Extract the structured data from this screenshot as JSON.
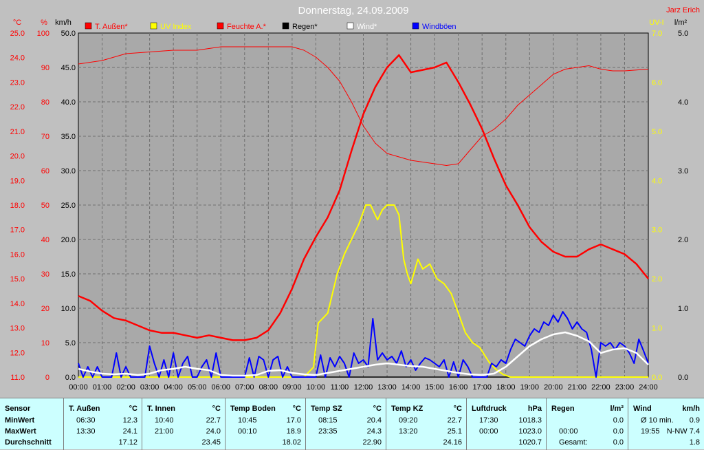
{
  "header": {
    "title": "Donnerstag, 24.09.2009",
    "author": "Jarz Erich"
  },
  "axes": {
    "temp_unit": "°C",
    "hum_unit": "%",
    "wind_unit": "km/h",
    "uv_unit": "UV-I",
    "rain_unit": "l/m²",
    "temp_ticks": [
      "11.0",
      "12.0",
      "13.0",
      "14.0",
      "15.0",
      "16.0",
      "17.0",
      "18.0",
      "19.0",
      "20.0",
      "21.0",
      "22.0",
      "23.0",
      "24.0",
      "25.0"
    ],
    "hum_ticks": [
      "0",
      "10",
      "20",
      "30",
      "40",
      "50",
      "60",
      "70",
      "80",
      "90",
      "100"
    ],
    "wind_ticks": [
      "0.0",
      "5.0",
      "10.0",
      "15.0",
      "20.0",
      "25.0",
      "30.0",
      "35.0",
      "40.0",
      "45.0",
      "50.0"
    ],
    "uv_ticks": [
      "0.0",
      "1.0",
      "2.0",
      "3.0",
      "4.0",
      "5.0",
      "6.0",
      "7.0"
    ],
    "rain_ticks": [
      "0.0",
      "1.0",
      "2.0",
      "3.0",
      "4.0",
      "5.0"
    ],
    "time_ticks": [
      "00:00",
      "01:00",
      "02:00",
      "03:00",
      "04:00",
      "05:00",
      "06:00",
      "07:00",
      "08:00",
      "09:00",
      "10:00",
      "11:00",
      "12:00",
      "13:00",
      "14:00",
      "15:00",
      "16:00",
      "17:00",
      "18:00",
      "19:00",
      "20:00",
      "21:00",
      "22:00",
      "23:00",
      "24:00"
    ]
  },
  "legend": [
    {
      "label": "T. Außen*",
      "color": "#ff0000"
    },
    {
      "label": "UV Index",
      "color": "#ffff00"
    },
    {
      "label": "Feuchte A.*",
      "color": "#ff0000"
    },
    {
      "label": "Regen*",
      "color": "#000000"
    },
    {
      "label": "Wind*",
      "color": "#ffffff"
    },
    {
      "label": "Windböen",
      "color": "#0000ff"
    }
  ],
  "chart_data": {
    "type": "line",
    "title": "Donnerstag, 24.09.2009",
    "x_range": [
      "00:00",
      "24:00"
    ],
    "grid": true,
    "series": [
      {
        "name": "T. Außen*",
        "axis": "temp_left",
        "color": "#ff0000",
        "x": [
          0,
          0.5,
          1,
          1.5,
          2,
          2.5,
          3,
          3.5,
          4,
          4.5,
          5,
          5.5,
          6,
          6.5,
          7,
          7.5,
          8,
          8.5,
          9,
          9.5,
          10,
          10.5,
          11,
          11.5,
          12,
          12.5,
          13,
          13.5,
          14,
          14.5,
          15,
          15.5,
          16,
          16.5,
          17,
          17.5,
          18,
          18.5,
          19,
          19.5,
          20,
          20.5,
          21,
          21.5,
          22,
          22.5,
          23,
          23.5,
          24
        ],
        "values": [
          14.3,
          14.1,
          13.7,
          13.4,
          13.3,
          13.1,
          12.9,
          12.8,
          12.8,
          12.7,
          12.6,
          12.7,
          12.6,
          12.5,
          12.5,
          12.6,
          12.9,
          13.6,
          14.6,
          15.8,
          16.7,
          17.5,
          18.6,
          20.2,
          21.7,
          22.8,
          23.6,
          24.1,
          23.4,
          23.5,
          23.6,
          23.8,
          23.0,
          22.1,
          21.1,
          19.9,
          18.8,
          18.0,
          17.1,
          16.5,
          16.1,
          15.9,
          15.9,
          16.2,
          16.4,
          16.2,
          16.0,
          15.6,
          15.0
        ]
      },
      {
        "name": "Feuchte A.*",
        "axis": "humidity",
        "color": "#ff0000",
        "x": [
          0,
          1,
          2,
          3,
          4,
          5,
          6,
          7,
          8,
          9,
          9.5,
          10,
          10.5,
          11,
          11.5,
          12,
          12.5,
          13,
          13.5,
          14,
          15,
          15.5,
          16,
          16.5,
          17,
          17.5,
          18,
          18.5,
          19,
          19.5,
          20,
          20.5,
          21,
          21.5,
          22,
          22.5,
          23,
          24
        ],
        "values": [
          91,
          92,
          94,
          94.5,
          95,
          95,
          96,
          96,
          96,
          96,
          95,
          93,
          90,
          86,
          80,
          73,
          68,
          65,
          64,
          63,
          62,
          61.5,
          62,
          66,
          70,
          72,
          75,
          79,
          82,
          85,
          88,
          89.5,
          90,
          90.5,
          89.5,
          89,
          89,
          89.5
        ]
      },
      {
        "name": "UV Index",
        "axis": "uv",
        "color": "#ffff00",
        "x": [
          0,
          9.5,
          9.9,
          10.1,
          10.3,
          10.5,
          10.9,
          11.2,
          11.5,
          11.8,
          12.1,
          12.3,
          12.6,
          12.8,
          13.0,
          13.3,
          13.5,
          13.7,
          13.85,
          14.0,
          14.3,
          14.5,
          14.8,
          15.1,
          15.4,
          15.7,
          16.0,
          16.3,
          16.6,
          16.9,
          17.3,
          17.6,
          17.9,
          18.2,
          24
        ],
        "values": [
          0,
          0,
          0.2,
          1.1,
          1.2,
          1.3,
          2.1,
          2.5,
          2.8,
          3.1,
          3.5,
          3.5,
          3.2,
          3.4,
          3.5,
          3.5,
          3.3,
          2.4,
          2.1,
          1.9,
          2.4,
          2.2,
          2.3,
          2.0,
          1.9,
          1.7,
          1.3,
          0.9,
          0.7,
          0.6,
          0.3,
          0.15,
          0.05,
          0,
          0
        ]
      },
      {
        "name": "Wind*",
        "axis": "wind",
        "color": "#ffffff",
        "x": [
          0,
          0.5,
          1,
          1.5,
          2,
          2.5,
          3,
          3.5,
          4,
          4.5,
          5,
          5.5,
          6,
          6.5,
          7,
          7.5,
          8,
          8.5,
          9,
          9.5,
          10,
          10.5,
          11,
          11.5,
          12,
          12.5,
          13,
          13.5,
          14,
          14.5,
          15,
          15.5,
          16,
          16.5,
          17,
          17.5,
          18,
          18.5,
          19,
          19.5,
          20,
          20.5,
          21,
          21.5,
          22,
          22.5,
          23,
          23.5,
          24
        ],
        "values": [
          1.2,
          0.8,
          0.5,
          0.4,
          0.5,
          0.3,
          0.5,
          1.0,
          1.2,
          1.5,
          1.2,
          1.0,
          0.3,
          0.2,
          0.2,
          0.3,
          0.9,
          1.0,
          0.6,
          0.4,
          0.3,
          0.6,
          0.9,
          1.2,
          1.5,
          1.8,
          2.0,
          1.8,
          1.6,
          1.5,
          1.2,
          0.9,
          0.6,
          0.4,
          0.3,
          0.5,
          1.5,
          3.0,
          4.5,
          5.5,
          6.2,
          6.5,
          6.0,
          5.2,
          3.5,
          4.0,
          4.2,
          3.5,
          1.8
        ]
      },
      {
        "name": "Windböen",
        "axis": "wind",
        "color": "#0000ff",
        "x": [
          0,
          0.2,
          0.4,
          0.6,
          0.8,
          1,
          1.2,
          1.4,
          1.6,
          1.8,
          2,
          2.2,
          2.4,
          2.6,
          2.8,
          3,
          3.2,
          3.4,
          3.6,
          3.8,
          4,
          4.2,
          4.4,
          4.6,
          4.8,
          5,
          5.2,
          5.4,
          5.6,
          5.8,
          6,
          6.2,
          6.4,
          6.6,
          6.8,
          7,
          7.2,
          7.4,
          7.6,
          7.8,
          8,
          8.2,
          8.4,
          8.6,
          8.8,
          9,
          9.2,
          9.4,
          9.6,
          9.8,
          10,
          10.2,
          10.4,
          10.6,
          10.8,
          11,
          11.2,
          11.4,
          11.6,
          11.8,
          12,
          12.2,
          12.4,
          12.6,
          12.8,
          13,
          13.2,
          13.4,
          13.6,
          13.8,
          14,
          14.2,
          14.4,
          14.6,
          14.8,
          15,
          15.2,
          15.4,
          15.6,
          15.8,
          16,
          16.2,
          16.4,
          16.6,
          16.8,
          17,
          17.2,
          17.4,
          17.6,
          17.8,
          18,
          18.2,
          18.4,
          18.6,
          18.8,
          19,
          19.2,
          19.4,
          19.6,
          19.8,
          20,
          20.2,
          20.4,
          20.6,
          20.8,
          21,
          21.2,
          21.4,
          21.6,
          21.8,
          22,
          22.2,
          22.4,
          22.6,
          22.8,
          23,
          23.2,
          23.4,
          23.6,
          23.8,
          24
        ],
        "values": [
          2,
          0,
          1.5,
          0,
          1.5,
          0,
          0,
          0,
          3.5,
          0,
          1.5,
          0,
          0,
          0,
          0,
          4.5,
          2,
          0,
          2.5,
          0,
          3.5,
          0,
          2,
          3,
          0,
          0,
          1.5,
          2.5,
          0,
          3.5,
          0,
          0,
          0,
          0,
          0,
          0,
          2.8,
          0,
          3,
          2.5,
          0,
          2.5,
          3,
          0,
          1.5,
          0,
          0,
          0,
          0,
          0,
          0,
          3.2,
          0,
          2.8,
          1.5,
          3,
          2,
          0,
          3.5,
          2,
          2.5,
          1.5,
          8.5,
          2.5,
          3.5,
          2.5,
          3,
          2,
          3.8,
          1.5,
          2.5,
          1,
          2,
          2.8,
          2.5,
          2,
          1.5,
          2.5,
          0,
          2.2,
          0,
          2.5,
          1.5,
          0,
          0,
          0,
          0,
          2,
          1.5,
          2.5,
          2,
          4,
          5.5,
          5,
          4.5,
          6,
          7,
          6.5,
          8,
          7.5,
          9,
          8,
          9.5,
          8.5,
          7,
          8,
          7,
          6.5,
          4,
          0,
          5,
          4.5,
          5,
          4,
          5,
          4.5,
          3.5,
          2,
          5.5,
          3.8,
          2
        ]
      },
      {
        "name": "Regen*",
        "axis": "rain",
        "color": "#000000",
        "x": [
          0,
          24
        ],
        "values": [
          0,
          0
        ]
      }
    ]
  },
  "table": [
    {
      "header": "Sensor",
      "header_unit": "",
      "min_label": "MinWert",
      "max_label": "MaxWert",
      "avg_label": "Durchschnitt"
    },
    {
      "header": "T. Außen",
      "header_unit": "°C",
      "min_time": "06:30",
      "min_val": "12.3",
      "max_time": "13:30",
      "max_val": "24.1",
      "avg": "17.12"
    },
    {
      "header": "T. Innen",
      "header_unit": "°C",
      "min_time": "10:40",
      "min_val": "22.7",
      "max_time": "21:00",
      "max_val": "24.0",
      "avg": "23.45"
    },
    {
      "header": "Temp Boden",
      "header_unit": "°C",
      "min_time": "10:45",
      "min_val": "17.0",
      "max_time": "00:10",
      "max_val": "18.9",
      "avg": "18.02"
    },
    {
      "header": "Temp SZ",
      "header_unit": "°C",
      "min_time": "08:15",
      "min_val": "20.4",
      "max_time": "23:35",
      "max_val": "24.3",
      "avg": "22.90"
    },
    {
      "header": "Temp KZ",
      "header_unit": "°C",
      "min_time": "09:20",
      "min_val": "22.7",
      "max_time": "13:20",
      "max_val": "25.1",
      "avg": "24.16"
    },
    {
      "header": "Luftdruck",
      "header_unit": "hPa",
      "min_time": "17:30",
      "min_val": "1018.3",
      "max_time": "00:00",
      "max_val": "1023.0",
      "avg": "1020.7"
    },
    {
      "header": "Regen",
      "header_unit": "l/m²",
      "min_time": "",
      "min_val": "0.0",
      "max_time": "00:00",
      "max_val": "0.0",
      "avg_label": "Gesamt:",
      "avg": "0.0"
    },
    {
      "header": "Wind",
      "header_unit": "km/h",
      "min_time": "Ø 10 min.",
      "min_val": "0.9",
      "max_time": "19:55",
      "max_val": "N-NW 7.4",
      "avg": "1.8"
    }
  ]
}
